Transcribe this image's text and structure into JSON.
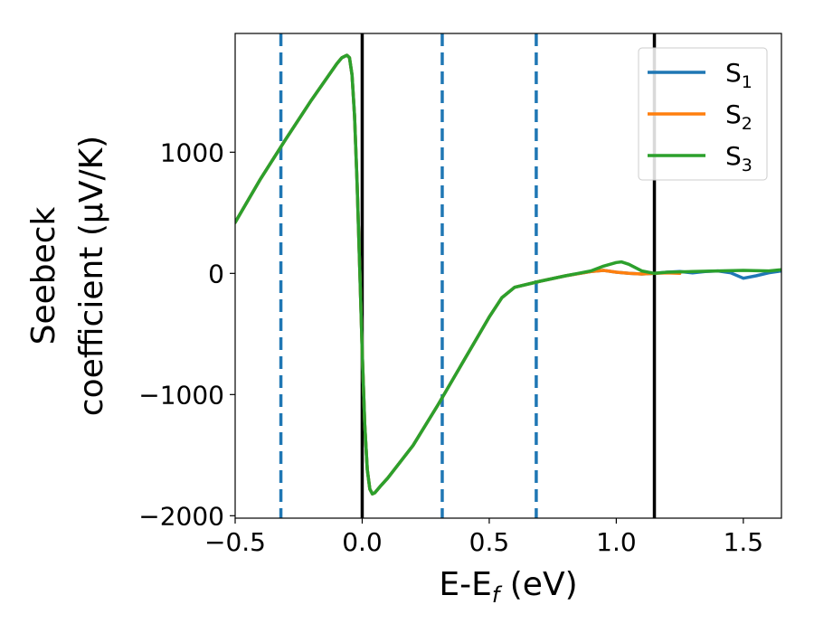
{
  "chart_data": {
    "type": "line",
    "title": "",
    "xlabel": "E-E",
    "xlabel_sub": "f",
    "xlabel_unit": " (eV)",
    "ylabel_line1": "Seebeck",
    "ylabel_line2": "coefficient  (μV/K)",
    "xlim": [
      -0.5,
      1.65
    ],
    "ylim": [
      -2020,
      1980
    ],
    "xticks": [
      -0.5,
      0.0,
      0.5,
      1.0,
      1.5
    ],
    "xtick_labels": [
      "−0.5",
      "0.0",
      "0.5",
      "1.0",
      "1.5"
    ],
    "yticks": [
      -2000,
      -1000,
      0,
      1000
    ],
    "ytick_labels": [
      "−2000",
      "−1000",
      "0",
      "1000"
    ],
    "grid": false,
    "legend_position": "top-right",
    "vlines_solid": [
      0.0,
      1.15
    ],
    "vlines_dashed": [
      -0.32,
      0.315,
      0.685
    ],
    "series": [
      {
        "name": "S",
        "sub": "1",
        "color": "#1f77b4",
        "x": [
          -0.5,
          -0.4,
          -0.3,
          -0.2,
          -0.1,
          -0.08,
          -0.06,
          -0.05,
          -0.04,
          -0.03,
          -0.02,
          -0.01,
          0.0,
          0.01,
          0.02,
          0.03,
          0.04,
          0.05,
          0.07,
          0.1,
          0.2,
          0.3,
          0.4,
          0.5,
          0.55,
          0.6,
          0.7,
          0.8,
          0.9,
          0.95,
          1.0,
          1.05,
          1.1,
          1.15,
          1.2,
          1.25,
          1.3,
          1.35,
          1.4,
          1.45,
          1.5,
          1.55,
          1.6,
          1.65
        ],
        "y": [
          420,
          780,
          1110,
          1430,
          1730,
          1780,
          1800,
          1780,
          1640,
          1300,
          750,
          50,
          -650,
          -1250,
          -1620,
          -1780,
          -1820,
          -1810,
          -1760,
          -1690,
          -1420,
          -1080,
          -720,
          -360,
          -200,
          -115,
          -65,
          -20,
          15,
          25,
          10,
          0,
          -5,
          0,
          10,
          15,
          5,
          15,
          20,
          5,
          -40,
          -20,
          5,
          20
        ]
      },
      {
        "name": "S",
        "sub": "2",
        "color": "#ff7f0e",
        "x": [
          -0.5,
          -0.4,
          -0.3,
          -0.2,
          -0.1,
          -0.08,
          -0.06,
          -0.05,
          -0.04,
          -0.03,
          -0.02,
          -0.01,
          0.0,
          0.01,
          0.02,
          0.03,
          0.04,
          0.05,
          0.07,
          0.1,
          0.2,
          0.3,
          0.4,
          0.5,
          0.55,
          0.6,
          0.7,
          0.8,
          0.9,
          0.95,
          1.0,
          1.05,
          1.1,
          1.15,
          1.2,
          1.25
        ],
        "y": [
          420,
          780,
          1110,
          1430,
          1730,
          1780,
          1800,
          1780,
          1640,
          1300,
          750,
          50,
          -650,
          -1250,
          -1620,
          -1780,
          -1820,
          -1810,
          -1760,
          -1690,
          -1420,
          -1080,
          -720,
          -360,
          -200,
          -115,
          -65,
          -20,
          15,
          25,
          10,
          0,
          -5,
          0,
          5,
          0
        ]
      },
      {
        "name": "S",
        "sub": "3",
        "color": "#2ca02c",
        "x": [
          -0.5,
          -0.4,
          -0.3,
          -0.2,
          -0.1,
          -0.08,
          -0.06,
          -0.05,
          -0.04,
          -0.03,
          -0.02,
          -0.01,
          0.0,
          0.01,
          0.02,
          0.03,
          0.04,
          0.05,
          0.07,
          0.1,
          0.2,
          0.3,
          0.4,
          0.5,
          0.55,
          0.6,
          0.7,
          0.8,
          0.9,
          0.95,
          1.0,
          1.02,
          1.05,
          1.1,
          1.15,
          1.2,
          1.3,
          1.4,
          1.5,
          1.6,
          1.65
        ],
        "y": [
          420,
          780,
          1110,
          1430,
          1730,
          1780,
          1800,
          1780,
          1640,
          1300,
          750,
          50,
          -650,
          -1250,
          -1620,
          -1780,
          -1820,
          -1810,
          -1760,
          -1690,
          -1420,
          -1080,
          -720,
          -360,
          -200,
          -115,
          -65,
          -20,
          20,
          60,
          90,
          95,
          75,
          20,
          0,
          10,
          15,
          20,
          25,
          20,
          30
        ]
      }
    ]
  }
}
